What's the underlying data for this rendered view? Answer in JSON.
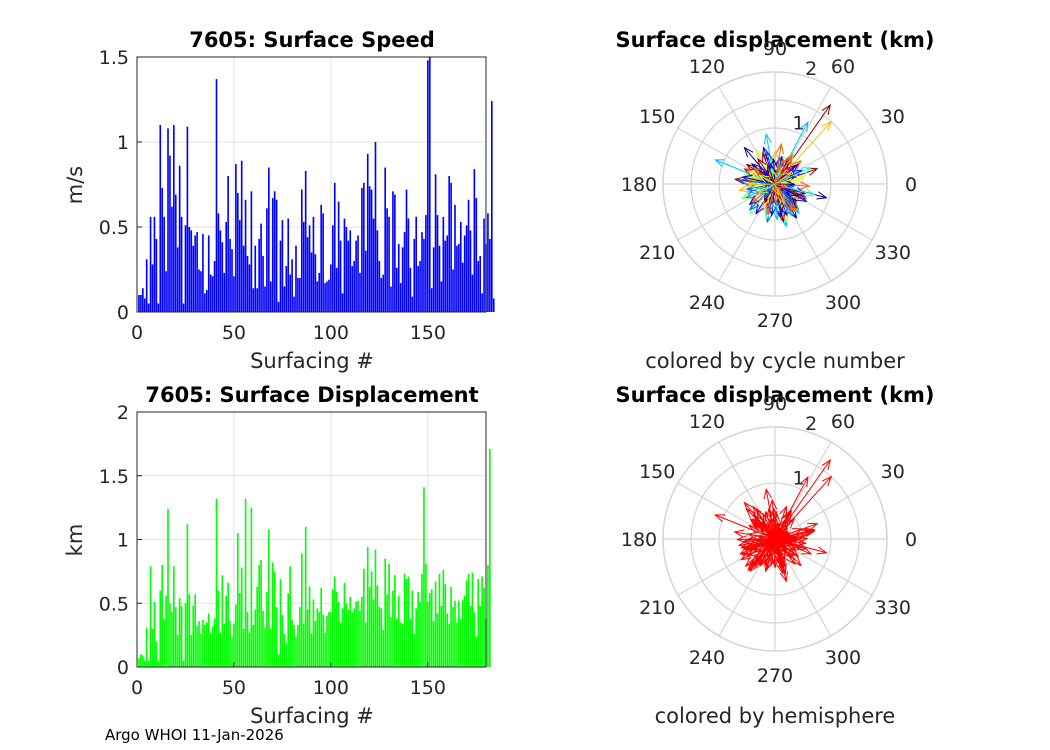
{
  "footer": "Argo WHOI 11-Jan-2026",
  "chart_data": [
    {
      "type": "bar",
      "title": "7605: Surface Speed",
      "xlabel": "Surfacing #",
      "ylabel": "m/s",
      "xlim": [
        0,
        180
      ],
      "ylim": [
        0,
        1.5
      ],
      "xticks": [
        "0",
        "50",
        "100",
        "150"
      ],
      "yticks": [
        "0",
        "0.5",
        "1",
        "1.5"
      ],
      "color": "#0000ff",
      "values": [
        0.1,
        0.1,
        0.14,
        0.08,
        0.31,
        0.05,
        0.56,
        0.28,
        0.56,
        0.43,
        0.05,
        1.1,
        0.73,
        0.56,
        0.24,
        1.08,
        0.92,
        0.62,
        1.1,
        0.69,
        0.38,
        0.86,
        0.56,
        0.05,
        0.51,
        1.09,
        0.5,
        0.48,
        0.39,
        0.45,
        0.47,
        0.25,
        0.24,
        0.46,
        0.11,
        0.13,
        0.45,
        0.22,
        0.21,
        0.3,
        1.37,
        0.58,
        0.48,
        0.41,
        0.23,
        0.53,
        0.8,
        0.43,
        0.37,
        0.21,
        0.87,
        0.7,
        0.54,
        0.89,
        0.39,
        0.66,
        0.33,
        0.28,
        0.71,
        0.14,
        0.39,
        0.14,
        0.43,
        0.52,
        0.33,
        0.15,
        0.61,
        0.85,
        0.18,
        0.67,
        0.71,
        0.66,
        0.06,
        0.42,
        0.54,
        0.15,
        0.27,
        0.55,
        0.22,
        0.31,
        0.09,
        0.39,
        0.2,
        0.2,
        0.72,
        0.53,
        0.83,
        0.44,
        0.51,
        0.35,
        0.56,
        0.34,
        0.18,
        0.23,
        0.63,
        0.58,
        0.17,
        0.18,
        0.19,
        0.28,
        0.51,
        0.76,
        0.26,
        0.65,
        0.42,
        0.11,
        0.55,
        0.5,
        0.42,
        0.48,
        0.27,
        0.3,
        0.42,
        0.45,
        0.23,
        0.73,
        0.76,
        0.36,
        0.93,
        0.74,
        0.72,
        0.55,
        1.0,
        0.48,
        0.3,
        0.2,
        0.22,
        0.85,
        0.61,
        0.56,
        0.15,
        0.71,
        0.69,
        0.26,
        0.4,
        0.17,
        0.38,
        0.47,
        0.72,
        0.55,
        0.26,
        0.09,
        0.43,
        0.56,
        0.27,
        0.3,
        0.47,
        0.43,
        0.57,
        1.48,
        1.5,
        0.14,
        0.38,
        0.81,
        0.57,
        0.39,
        0.18,
        0.56,
        0.42,
        0.45,
        0.8,
        0.76,
        0.25,
        0.63,
        0.39,
        0.4,
        0.53,
        0.29,
        0.45,
        0.51,
        0.66,
        0.48,
        0.22,
        0.84,
        0.67,
        0.3,
        0.33,
        0.11,
        0.55,
        0.4,
        0.58,
        0.43,
        1.24,
        0.08
      ]
    },
    {
      "type": "polar-quiver",
      "title": "Surface displacement (km)",
      "subtitle": "colored by cycle number",
      "angle_labels": [
        "0",
        "30",
        "60",
        "90",
        "120",
        "150",
        "180",
        "210",
        "240",
        "270",
        "300",
        "330"
      ],
      "radial_labels": [
        "1",
        "2"
      ],
      "rmax": 2,
      "colormap": "jet",
      "vectors": [
        {
          "angle": 55,
          "r": 1.72
        },
        {
          "angle": 48,
          "r": 1.5
        },
        {
          "angle": 62,
          "r": 1.25
        },
        {
          "angle": 158,
          "r": 1.15
        },
        {
          "angle": 345,
          "r": 0.95
        },
        {
          "angle": 20,
          "r": 0.8
        },
        {
          "angle": 190,
          "r": 0.65
        },
        {
          "angle": 230,
          "r": 0.7
        },
        {
          "angle": 285,
          "r": 0.78
        },
        {
          "angle": 255,
          "r": 0.55
        },
        {
          "angle": 100,
          "r": 0.9
        },
        {
          "angle": 130,
          "r": 0.85
        }
      ]
    },
    {
      "type": "bar",
      "title": "7605: Surface Displacement",
      "xlabel": "Surfacing #",
      "ylabel": "km",
      "xlim": [
        0,
        180
      ],
      "ylim": [
        0,
        2
      ],
      "xticks": [
        "0",
        "50",
        "100",
        "150"
      ],
      "yticks": [
        "0",
        "0.5",
        "1",
        "1.5",
        "2"
      ],
      "color": "#00ff00",
      "values": [
        0.07,
        0.1,
        0.09,
        0.05,
        0.31,
        0.05,
        0.79,
        0.3,
        0.51,
        0.2,
        0.05,
        0.6,
        0.8,
        0.38,
        0.56,
        1.24,
        0.5,
        0.43,
        0.79,
        0.47,
        0.25,
        0.54,
        0.48,
        0.05,
        0.5,
        1.12,
        0.57,
        0.25,
        0.48,
        0.57,
        0.32,
        0.36,
        0.26,
        0.37,
        0.33,
        0.35,
        0.42,
        0.27,
        0.32,
        0.38,
        1.32,
        0.6,
        0.27,
        0.72,
        0.34,
        0.56,
        0.66,
        0.36,
        0.24,
        0.34,
        0.49,
        1.05,
        0.58,
        0.78,
        0.3,
        1.32,
        0.43,
        0.27,
        1.25,
        0.33,
        0.45,
        0.63,
        0.8,
        0.84,
        0.44,
        0.31,
        0.59,
        1.08,
        0.3,
        0.82,
        0.75,
        0.47,
        0.1,
        0.69,
        0.41,
        0.26,
        0.19,
        0.58,
        0.79,
        0.37,
        0.33,
        0.24,
        0.33,
        0.47,
        0.89,
        0.34,
        1.1,
        0.45,
        0.63,
        0.26,
        0.53,
        0.36,
        0.46,
        0.43,
        0.62,
        0.41,
        0.27,
        0.4,
        0.43,
        0.43,
        0.61,
        0.71,
        0.59,
        0.51,
        0.35,
        0.46,
        0.66,
        0.5,
        0.45,
        0.55,
        0.43,
        0.46,
        0.51,
        0.52,
        0.44,
        0.55,
        0.77,
        0.35,
        0.94,
        0.63,
        0.75,
        0.53,
        0.92,
        0.64,
        0.47,
        0.46,
        0.29,
        0.85,
        0.57,
        0.81,
        0.39,
        0.6,
        0.72,
        0.38,
        0.56,
        0.35,
        0.34,
        0.73,
        0.69,
        0.71,
        0.38,
        0.6,
        0.26,
        0.46,
        0.59,
        0.51,
        0.73,
        1.41,
        0.81,
        0.51,
        0.58,
        0.61,
        0.36,
        0.67,
        0.42,
        0.73,
        0.48,
        0.76,
        0.65,
        0.42,
        0.34,
        0.63,
        0.47,
        0.52,
        0.35,
        0.52,
        0.38,
        0.53,
        0.56,
        0.68,
        0.73,
        0.48,
        0.74,
        0.43,
        0.24,
        0.69,
        0.48,
        0.71,
        0.62,
        0.38,
        0.8,
        1.71
      ]
    },
    {
      "type": "polar-quiver",
      "title": "Surface displacement (km)",
      "subtitle": "colored by hemisphere",
      "angle_labels": [
        "0",
        "30",
        "60",
        "90",
        "120",
        "150",
        "180",
        "210",
        "240",
        "270",
        "300",
        "330"
      ],
      "radial_labels": [
        "1",
        "2"
      ],
      "rmax": 2,
      "color": "#ff0000",
      "vectors": [
        {
          "angle": 55,
          "r": 1.72
        },
        {
          "angle": 48,
          "r": 1.5
        },
        {
          "angle": 62,
          "r": 1.25
        },
        {
          "angle": 158,
          "r": 1.15
        },
        {
          "angle": 345,
          "r": 0.95
        },
        {
          "angle": 20,
          "r": 0.8
        },
        {
          "angle": 190,
          "r": 0.65
        },
        {
          "angle": 230,
          "r": 0.7
        },
        {
          "angle": 285,
          "r": 0.78
        },
        {
          "angle": 255,
          "r": 0.55
        },
        {
          "angle": 100,
          "r": 0.9
        },
        {
          "angle": 130,
          "r": 0.85
        }
      ]
    }
  ]
}
